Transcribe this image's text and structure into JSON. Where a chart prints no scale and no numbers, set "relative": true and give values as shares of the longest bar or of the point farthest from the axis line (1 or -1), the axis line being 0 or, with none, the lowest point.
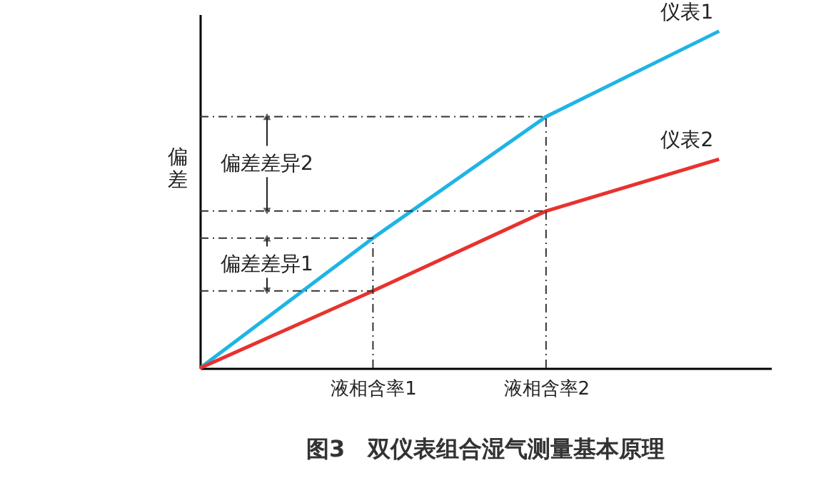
{
  "chart_data": {
    "type": "line",
    "title": "图3　双仪表组合湿气测量基本原理",
    "ylabel": "偏差",
    "relative": true,
    "categories": [
      null,
      "液相含率1",
      "液相含率2",
      null
    ],
    "series": [
      {
        "name": "仪表1",
        "color": "#1fb4e6",
        "values": [
          0,
          0.386,
          0.746,
          1
        ]
      },
      {
        "name": "仪表2",
        "color": "#e8322e",
        "values": [
          0,
          0.229,
          0.466,
          0.62
        ]
      }
    ],
    "ref_lines": [
      {
        "axis": "y",
        "value": 0.746,
        "color": "#333333",
        "line_style": "dashed"
      },
      {
        "axis": "y",
        "value": 0.466,
        "color": "#333333",
        "line_style": "dashed"
      },
      {
        "axis": "y",
        "value": 0.386,
        "color": "#333333",
        "line_style": "dashed"
      },
      {
        "axis": "y",
        "value": 0.229,
        "color": "#333333",
        "line_style": "dashed"
      },
      {
        "axis": "x",
        "value": "液相含率1",
        "color": "#333333",
        "line_style": "dashed"
      },
      {
        "axis": "x",
        "value": "液相含率2",
        "color": "#333333",
        "line_style": "dashed"
      }
    ],
    "annotations": [
      "偏差差异2",
      "偏差差异1"
    ],
    "marker": "none",
    "line_style": "solid"
  }
}
